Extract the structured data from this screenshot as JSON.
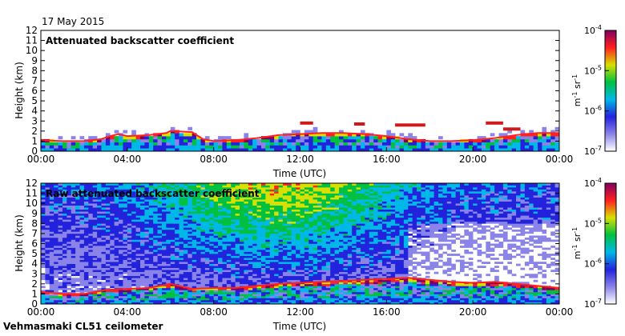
{
  "date_label": "17 May 2015",
  "footer_label": "Vehmasmaki CL51 ceilometer",
  "chart_data": [
    {
      "type": "heatmap",
      "title": "Attenuated backscatter coefficient",
      "xlabel": "Time (UTC)",
      "ylabel": "Height (km)",
      "xlim": [
        "00:00",
        "00:00"
      ],
      "x_ticks": [
        "00:00",
        "04:00",
        "08:00",
        "12:00",
        "16:00",
        "20:00",
        "00:00"
      ],
      "ylim": [
        0,
        12
      ],
      "y_ticks": [
        0,
        1,
        2,
        3,
        4,
        5,
        6,
        7,
        8,
        9,
        10,
        11,
        12
      ],
      "colorbar": {
        "label_base": "m",
        "label_sup1": "-1",
        "label_mid": " sr",
        "label_sup2": "-1",
        "scale": "log",
        "range": [
          1e-07,
          0.0001
        ],
        "ticks": [
          {
            "base": "10",
            "exp": "-4",
            "value": 0.0001
          },
          {
            "base": "10",
            "exp": "-5",
            "value": 1e-05
          },
          {
            "base": "10",
            "exp": "-6",
            "value": 1e-06
          },
          {
            "base": "10",
            "exp": "-7",
            "value": 1e-07
          }
        ]
      },
      "boundary_layer_top_km": [
        [
          0.0,
          1.1
        ],
        [
          1.0,
          1.0
        ],
        [
          2.0,
          1.0
        ],
        [
          2.8,
          1.2
        ],
        [
          3.2,
          1.5
        ],
        [
          3.6,
          1.7
        ],
        [
          4.0,
          1.5
        ],
        [
          5.0,
          1.6
        ],
        [
          5.8,
          1.8
        ],
        [
          6.0,
          2.0
        ],
        [
          7.0,
          1.9
        ],
        [
          7.5,
          1.2
        ],
        [
          8.0,
          1.0
        ],
        [
          9.0,
          1.1
        ],
        [
          10.0,
          1.3
        ],
        [
          11.0,
          1.6
        ],
        [
          12.0,
          1.7
        ],
        [
          13.0,
          1.8
        ],
        [
          14.0,
          1.8
        ],
        [
          15.0,
          1.7
        ],
        [
          16.0,
          1.5
        ],
        [
          17.0,
          1.2
        ],
        [
          18.0,
          1.0
        ],
        [
          19.0,
          1.0
        ],
        [
          20.0,
          1.1
        ],
        [
          21.0,
          1.3
        ],
        [
          22.0,
          1.6
        ],
        [
          23.0,
          1.8
        ],
        [
          24.0,
          1.8
        ]
      ],
      "cloud_layers_km": [
        {
          "start": 12.0,
          "end": 12.6,
          "height": 2.8
        },
        {
          "start": 14.5,
          "end": 15.0,
          "height": 2.7
        },
        {
          "start": 16.4,
          "end": 17.8,
          "height": 2.6
        },
        {
          "start": 20.6,
          "end": 21.4,
          "height": 2.8
        },
        {
          "start": 21.4,
          "end": 22.2,
          "height": 2.2
        }
      ]
    },
    {
      "type": "heatmap",
      "title": "Raw attenuated backscatter coefficient",
      "xlabel": "Time (UTC)",
      "ylabel": "Height (km)",
      "xlim": [
        "00:00",
        "00:00"
      ],
      "x_ticks": [
        "00:00",
        "04:00",
        "08:00",
        "12:00",
        "16:00",
        "20:00",
        "00:00"
      ],
      "ylim": [
        0,
        12
      ],
      "y_ticks": [
        0,
        1,
        2,
        3,
        4,
        5,
        6,
        7,
        8,
        9,
        10,
        11,
        12
      ],
      "colorbar": {
        "label_base": "m",
        "label_sup1": "-1",
        "label_mid": " sr",
        "label_sup2": "-1",
        "scale": "log",
        "range": [
          1e-07,
          0.0001
        ],
        "ticks": [
          {
            "base": "10",
            "exp": "-4",
            "value": 0.0001
          },
          {
            "base": "10",
            "exp": "-5",
            "value": 1e-05
          },
          {
            "base": "10",
            "exp": "-6",
            "value": 1e-06
          },
          {
            "base": "10",
            "exp": "-7",
            "value": 1e-07
          }
        ]
      },
      "boundary_layer_top_km": [
        [
          0.0,
          1.2
        ],
        [
          1.0,
          1.0
        ],
        [
          2.0,
          1.0
        ],
        [
          3.0,
          1.4
        ],
        [
          4.0,
          1.5
        ],
        [
          5.0,
          1.6
        ],
        [
          6.0,
          2.0
        ],
        [
          7.0,
          1.5
        ],
        [
          8.0,
          1.6
        ],
        [
          9.0,
          1.6
        ],
        [
          10.0,
          1.8
        ],
        [
          11.0,
          2.0
        ],
        [
          12.0,
          2.1
        ],
        [
          13.0,
          2.2
        ],
        [
          14.0,
          2.3
        ],
        [
          15.0,
          2.4
        ],
        [
          16.0,
          2.5
        ],
        [
          17.0,
          2.6
        ],
        [
          18.0,
          2.4
        ],
        [
          19.0,
          2.2
        ],
        [
          20.0,
          2.1
        ],
        [
          21.0,
          2.2
        ],
        [
          22.0,
          2.0
        ],
        [
          23.0,
          1.8
        ],
        [
          24.0,
          1.6
        ]
      ]
    }
  ],
  "colors": {
    "colormap": [
      "#ffffff",
      "#8a83e8",
      "#2222dd",
      "#00b8e8",
      "#00c040",
      "#d8e000",
      "#ff2020",
      "#800060"
    ]
  }
}
